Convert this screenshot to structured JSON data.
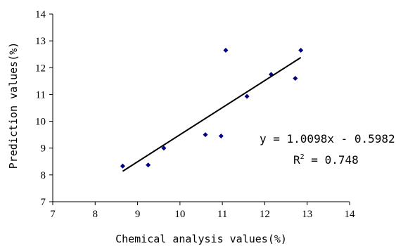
{
  "chart_data": {
    "type": "scatter",
    "xlabel": "Chemical analysis values(%)",
    "ylabel": "Prediction values(%)",
    "xlim": [
      7,
      14
    ],
    "ylim": [
      7,
      14
    ],
    "x_ticks": [
      "7",
      "8",
      "9",
      "10",
      "11",
      "12",
      "13",
      "14"
    ],
    "y_ticks": [
      "7",
      "8",
      "9",
      "10",
      "11",
      "12",
      "13",
      "14"
    ],
    "grid": false,
    "legend": "none",
    "series": [
      {
        "x": [
          8.65,
          9.25,
          9.62,
          10.6,
          10.97,
          11.08,
          11.58,
          12.15,
          12.72,
          12.85
        ],
        "y": [
          8.33,
          8.37,
          9.0,
          9.5,
          9.45,
          12.65,
          10.93,
          11.75,
          11.6,
          12.65
        ]
      }
    ],
    "trendline": {
      "x": [
        8.65,
        12.85
      ]
    },
    "annotations": {
      "equation": "y = 1.0098x - 0.5982",
      "r2_prefix": "R",
      "r2_sup": "2",
      "r2_value": " = 0.748"
    },
    "colors": {
      "marker": "#00008B",
      "line": "#000000",
      "axis": "#000000"
    }
  }
}
